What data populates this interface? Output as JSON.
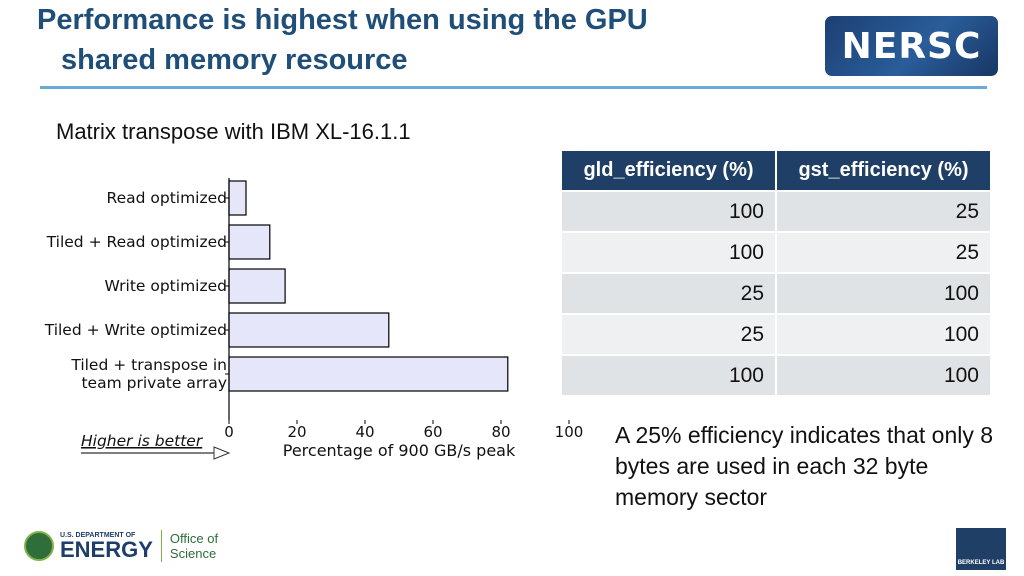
{
  "slide": {
    "title_line1": "Performance is highest when using the GPU",
    "title_line2": "shared memory resource",
    "subtitle": "Matrix transpose with IBM XL-16.1.1",
    "logo_text": "NERSC",
    "note": "A 25% efficiency indicates that only 8 bytes are used in each 32 byte memory sector",
    "footer": {
      "doe_small": "U.S. DEPARTMENT OF",
      "doe_big": "ENERGY",
      "office_line1": "Office of",
      "office_line2": "Science",
      "lab_label": "BERKELEY LAB"
    },
    "colors": {
      "title": "#1f4e79",
      "rule": "#6aaad6",
      "header_bg": "#1f3f66",
      "bar_fill": "#e6e6fa"
    }
  },
  "table": {
    "headers": [
      "gld_efficiency (%)",
      "gst_efficiency (%)"
    ],
    "rows": [
      [
        "100",
        "25"
      ],
      [
        "100",
        "25"
      ],
      [
        "25",
        "100"
      ],
      [
        "25",
        "100"
      ],
      [
        "100",
        "100"
      ]
    ]
  },
  "chart_data": {
    "type": "bar",
    "orientation": "horizontal",
    "categories": [
      "Read optimized",
      "Tiled + Read optimized",
      "Write optimized",
      "Tiled + Write optimized",
      "Tiled + transpose in team private array"
    ],
    "category_lines": [
      [
        "Read optimized"
      ],
      [
        "Tiled + Read optimized"
      ],
      [
        "Write optimized"
      ],
      [
        "Tiled + Write optimized"
      ],
      [
        "Tiled + transpose in",
        "team private array"
      ]
    ],
    "values": [
      5,
      12,
      16.5,
      47,
      82
    ],
    "xlabel": "Percentage of 900 GB/s peak",
    "xlim": [
      0,
      100
    ],
    "xticks": [
      0,
      20,
      40,
      60,
      80,
      100
    ],
    "annotation": "Higher is better",
    "grid": false
  }
}
